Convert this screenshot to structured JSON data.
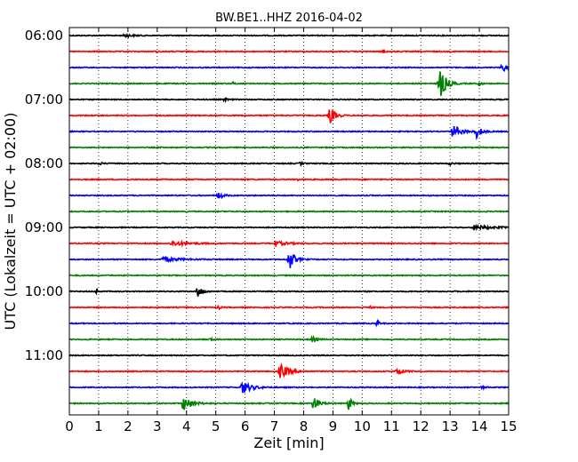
{
  "chart_data": {
    "type": "line",
    "title": "BW.BE1..HHZ 2016-04-02",
    "xlabel": "Zeit  [min]",
    "ylabel": "UTC (Lokalzeit = UTC + 02:00)",
    "xlim": [
      0,
      15
    ],
    "x_ticks": [
      "0",
      "1",
      "2",
      "3",
      "4",
      "5",
      "6",
      "7",
      "8",
      "9",
      "10",
      "11",
      "12",
      "13",
      "14",
      "15"
    ],
    "y_tick_labels": [
      "06:00",
      "07:00",
      "08:00",
      "09:00",
      "10:00",
      "11:00"
    ],
    "trace_count": 24,
    "trace_interval_min": 15,
    "first_trace_time": "06:00",
    "grid": "vertical dotted",
    "colors": [
      "#000000",
      "#ff0000",
      "#0000ff",
      "#008000"
    ],
    "events": [
      {
        "trace": 0,
        "t": 1.9,
        "amp": 0.25,
        "width": 0.4
      },
      {
        "trace": 1,
        "t": 3.0,
        "amp": 0.1,
        "width": 0.1
      },
      {
        "trace": 1,
        "t": 10.7,
        "amp": 0.25,
        "width": 0.15
      },
      {
        "trace": 2,
        "t": 14.8,
        "amp": 0.6,
        "width": 0.25
      },
      {
        "trace": 3,
        "t": 12.65,
        "amp": 2.2,
        "width": 0.35
      },
      {
        "trace": 3,
        "t": 5.6,
        "amp": 0.2,
        "width": 0.1
      },
      {
        "trace": 3,
        "t": 14.0,
        "amp": 0.35,
        "width": 0.1
      },
      {
        "trace": 4,
        "t": 5.3,
        "amp": 0.2,
        "width": 0.15
      },
      {
        "trace": 5,
        "t": 8.9,
        "amp": 1.1,
        "width": 0.3
      },
      {
        "trace": 6,
        "t": 13.1,
        "amp": 0.9,
        "width": 0.45
      },
      {
        "trace": 6,
        "t": 13.9,
        "amp": 0.8,
        "width": 0.3
      },
      {
        "trace": 8,
        "t": 1.0,
        "amp": 0.15,
        "width": 0.3
      },
      {
        "trace": 8,
        "t": 7.9,
        "amp": 0.2,
        "width": 0.15
      },
      {
        "trace": 8,
        "t": 13.0,
        "amp": 0.15,
        "width": 0.2
      },
      {
        "trace": 9,
        "t": 7.8,
        "amp": 0.12,
        "width": 0.1
      },
      {
        "trace": 10,
        "t": 5.1,
        "amp": 0.45,
        "width": 0.3
      },
      {
        "trace": 12,
        "t": 13.8,
        "amp": 0.25,
        "width": 1.2
      },
      {
        "trace": 13,
        "t": 3.5,
        "amp": 0.3,
        "width": 1.0
      },
      {
        "trace": 13,
        "t": 7.0,
        "amp": 0.3,
        "width": 0.8
      },
      {
        "trace": 14,
        "t": 7.5,
        "amp": 1.5,
        "width": 0.3
      },
      {
        "trace": 14,
        "t": 3.2,
        "amp": 0.3,
        "width": 1.0
      },
      {
        "trace": 16,
        "t": 0.95,
        "amp": 0.45,
        "width": 0.06
      },
      {
        "trace": 16,
        "t": 4.4,
        "amp": 0.85,
        "width": 0.25
      },
      {
        "trace": 17,
        "t": 5.1,
        "amp": 0.2,
        "width": 0.1
      },
      {
        "trace": 17,
        "t": 10.3,
        "amp": 0.15,
        "width": 0.1
      },
      {
        "trace": 18,
        "t": 10.5,
        "amp": 0.4,
        "width": 0.15
      },
      {
        "trace": 19,
        "t": 8.3,
        "amp": 0.3,
        "width": 0.3
      },
      {
        "trace": 19,
        "t": 4.8,
        "amp": 0.12,
        "width": 0.2
      },
      {
        "trace": 21,
        "t": 7.2,
        "amp": 1.0,
        "width": 0.5
      },
      {
        "trace": 21,
        "t": 11.2,
        "amp": 0.4,
        "width": 0.4
      },
      {
        "trace": 22,
        "t": 5.9,
        "amp": 0.8,
        "width": 0.55
      },
      {
        "trace": 22,
        "t": 14.1,
        "amp": 0.15,
        "width": 0.2
      },
      {
        "trace": 23,
        "t": 3.9,
        "amp": 1.0,
        "width": 0.5
      },
      {
        "trace": 23,
        "t": 8.35,
        "amp": 1.0,
        "width": 0.3
      },
      {
        "trace": 23,
        "t": 9.55,
        "amp": 1.0,
        "width": 0.15
      }
    ]
  }
}
